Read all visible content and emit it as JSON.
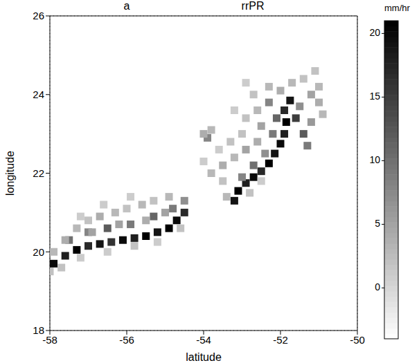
{
  "chart_data": {
    "type": "heatmap",
    "panel": "a",
    "title": "rrPR",
    "x_label": "latitude",
    "y_label": "longitude",
    "xlim": [
      -58,
      -50
    ],
    "xticks": [
      -58,
      -56,
      -54,
      -52,
      -50
    ],
    "ylim": [
      18,
      26
    ],
    "yticks": [
      18,
      20,
      22,
      24,
      26
    ],
    "grid": true,
    "color": "gray",
    "colorbar": {
      "label": "mm/hr",
      "range": [
        -4,
        21
      ],
      "ticks": [
        0,
        5,
        10,
        15,
        20
      ]
    },
    "cells": [
      [
        -57.9,
        19.7,
        20
      ],
      [
        -57.6,
        19.9,
        18
      ],
      [
        -57.3,
        20.05,
        21
      ],
      [
        -57.0,
        20.15,
        17
      ],
      [
        -56.7,
        20.2,
        19
      ],
      [
        -56.4,
        20.25,
        16
      ],
      [
        -56.1,
        20.3,
        20
      ],
      [
        -55.8,
        20.35,
        18
      ],
      [
        -55.5,
        20.4,
        22
      ],
      [
        -55.2,
        20.5,
        19
      ],
      [
        -54.9,
        20.6,
        21
      ],
      [
        -54.7,
        20.8,
        20
      ],
      [
        -54.5,
        21.0,
        17
      ],
      [
        -57.5,
        20.3,
        10
      ],
      [
        -57.0,
        20.5,
        8
      ],
      [
        -56.5,
        20.6,
        12
      ],
      [
        -55.9,
        20.7,
        9
      ],
      [
        -55.3,
        20.9,
        11
      ],
      [
        -54.8,
        21.1,
        9
      ],
      [
        -54.5,
        21.3,
        7
      ],
      [
        -57.9,
        20.0,
        3
      ],
      [
        -57.6,
        20.3,
        4
      ],
      [
        -57.3,
        20.6,
        3
      ],
      [
        -57.0,
        20.8,
        2
      ],
      [
        -56.7,
        20.9,
        4
      ],
      [
        -56.3,
        21.0,
        3
      ],
      [
        -56.0,
        21.1,
        2
      ],
      [
        -55.6,
        21.2,
        3
      ],
      [
        -55.3,
        21.3,
        2
      ],
      [
        -54.9,
        21.4,
        3
      ],
      [
        -57.2,
        20.9,
        1
      ],
      [
        -56.6,
        21.2,
        1
      ],
      [
        -55.9,
        21.4,
        1
      ],
      [
        -56.9,
        20.5,
        5
      ],
      [
        -56.2,
        20.7,
        5
      ],
      [
        -55.5,
        20.8,
        4
      ],
      [
        -55.0,
        21.0,
        5
      ],
      [
        -58.0,
        19.5,
        2
      ],
      [
        -57.7,
        19.6,
        2
      ],
      [
        -57.2,
        19.85,
        1
      ],
      [
        -56.5,
        20.0,
        1
      ],
      [
        -55.8,
        20.15,
        2
      ],
      [
        -55.2,
        20.25,
        1
      ],
      [
        -54.6,
        20.6,
        2
      ],
      [
        -53.2,
        21.3,
        19
      ],
      [
        -53.1,
        21.55,
        21
      ],
      [
        -52.9,
        21.75,
        18
      ],
      [
        -52.7,
        21.9,
        20
      ],
      [
        -52.5,
        22.05,
        17
      ],
      [
        -52.3,
        22.25,
        21
      ],
      [
        -52.15,
        22.5,
        19
      ],
      [
        -52.0,
        22.75,
        20
      ],
      [
        -51.9,
        23.0,
        18
      ],
      [
        -51.85,
        23.3,
        21
      ],
      [
        -51.9,
        23.6,
        17
      ],
      [
        -51.75,
        23.85,
        19
      ],
      [
        -51.6,
        23.4,
        15
      ],
      [
        -51.4,
        23.0,
        12
      ],
      [
        -51.3,
        22.7,
        9
      ],
      [
        -53.0,
        21.9,
        8
      ],
      [
        -52.7,
        22.2,
        10
      ],
      [
        -52.4,
        22.5,
        7
      ],
      [
        -52.2,
        23.0,
        9
      ],
      [
        -52.1,
        23.4,
        11
      ],
      [
        -52.3,
        23.8,
        8
      ],
      [
        -51.5,
        23.7,
        7
      ],
      [
        -51.2,
        23.3,
        6
      ],
      [
        -53.8,
        22.0,
        3
      ],
      [
        -53.5,
        22.2,
        4
      ],
      [
        -53.2,
        22.4,
        3
      ],
      [
        -52.9,
        22.6,
        5
      ],
      [
        -52.6,
        22.8,
        4
      ],
      [
        -52.5,
        23.2,
        5
      ],
      [
        -52.6,
        23.6,
        3
      ],
      [
        -52.7,
        24.0,
        2
      ],
      [
        -52.3,
        24.2,
        3
      ],
      [
        -52.0,
        24.1,
        4
      ],
      [
        -51.7,
        24.3,
        3
      ],
      [
        -51.4,
        24.4,
        2
      ],
      [
        -51.1,
        24.6,
        2
      ],
      [
        -51.0,
        24.2,
        3
      ],
      [
        -51.0,
        23.8,
        4
      ],
      [
        -50.9,
        23.5,
        3
      ],
      [
        -51.2,
        24.0,
        5
      ],
      [
        -53.0,
        23.0,
        2
      ],
      [
        -53.3,
        22.8,
        2
      ],
      [
        -53.6,
        22.6,
        1
      ],
      [
        -54.0,
        22.3,
        1
      ],
      [
        -52.9,
        23.4,
        2
      ],
      [
        -53.2,
        23.6,
        1
      ],
      [
        -52.9,
        24.3,
        1
      ],
      [
        -53.5,
        21.8,
        2
      ],
      [
        -53.4,
        21.4,
        3
      ],
      [
        -52.8,
        21.5,
        2
      ],
      [
        -52.5,
        21.8,
        1
      ],
      [
        -53.9,
        22.9,
        8
      ],
      [
        -54.0,
        23.0,
        4
      ],
      [
        -53.8,
        23.1,
        3
      ]
    ]
  }
}
